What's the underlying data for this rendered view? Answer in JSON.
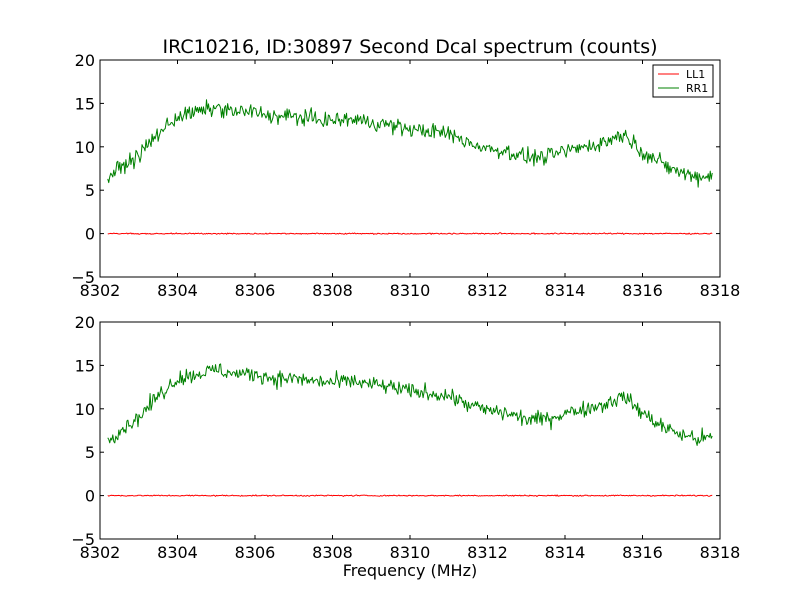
{
  "figure": {
    "title": "IRC10216, ID:30897 Second Dcal spectrum (counts)",
    "xlabel": "Frequency (MHz)",
    "background": "#ffffff"
  },
  "chart_data": [
    {
      "type": "line",
      "title": "IRC10216, ID:30897 Second Dcal spectrum (counts)",
      "xlabel": "",
      "ylabel": "",
      "xlim": [
        8302,
        8318
      ],
      "ylim": [
        -5,
        20
      ],
      "xticks": [
        8302,
        8304,
        8306,
        8308,
        8310,
        8312,
        8314,
        8316,
        8318
      ],
      "yticks": [
        -5,
        0,
        5,
        10,
        15,
        20
      ],
      "grid": false,
      "legend": "top-right",
      "series": [
        {
          "name": "LL1",
          "color": "#ff0000",
          "x": [
            8302.2,
            8317.8
          ],
          "y": [
            0.0,
            0.0
          ]
        },
        {
          "name": "RR1",
          "color": "#008000",
          "x": [
            8302.2,
            8302.5,
            8303.0,
            8303.5,
            8304.0,
            8304.5,
            8305.0,
            8305.5,
            8306.0,
            8306.5,
            8307.0,
            8307.5,
            8308.0,
            8308.5,
            8309.0,
            8309.5,
            8310.0,
            8310.5,
            8311.0,
            8311.5,
            8312.0,
            8312.5,
            8313.0,
            8313.5,
            8314.0,
            8314.5,
            8315.0,
            8315.5,
            8316.0,
            8316.5,
            8317.0,
            8317.5,
            8317.8
          ],
          "y": [
            6.5,
            7.5,
            9.0,
            11.5,
            13.5,
            14.0,
            14.5,
            14.0,
            14.0,
            13.5,
            13.5,
            13.2,
            13.0,
            13.2,
            12.8,
            12.5,
            12.0,
            11.8,
            11.5,
            10.5,
            9.8,
            9.5,
            8.8,
            8.8,
            9.5,
            10.0,
            10.5,
            11.5,
            9.5,
            8.0,
            7.0,
            6.5,
            6.8
          ]
        }
      ]
    },
    {
      "type": "line",
      "title": "",
      "xlabel": "Frequency (MHz)",
      "ylabel": "",
      "xlim": [
        8302,
        8318
      ],
      "ylim": [
        -5,
        20
      ],
      "xticks": [
        8302,
        8304,
        8306,
        8308,
        8310,
        8312,
        8314,
        8316,
        8318
      ],
      "yticks": [
        -5,
        0,
        5,
        10,
        15,
        20
      ],
      "grid": false,
      "series": [
        {
          "name": "",
          "color": "#ff0000",
          "x": [
            8302.2,
            8317.8
          ],
          "y": [
            0.0,
            0.0
          ]
        },
        {
          "name": "",
          "color": "#008000",
          "x": [
            8302.2,
            8302.5,
            8303.0,
            8303.5,
            8304.0,
            8304.5,
            8305.0,
            8305.5,
            8306.0,
            8306.5,
            8307.0,
            8307.5,
            8308.0,
            8308.5,
            8309.0,
            8309.5,
            8310.0,
            8310.5,
            8311.0,
            8311.5,
            8312.0,
            8312.5,
            8313.0,
            8313.5,
            8314.0,
            8314.5,
            8315.0,
            8315.5,
            8316.0,
            8316.5,
            8317.0,
            8317.5,
            8317.8
          ],
          "y": [
            6.5,
            7.5,
            9.0,
            11.5,
            13.5,
            14.0,
            14.5,
            14.0,
            14.0,
            13.5,
            13.5,
            13.2,
            13.0,
            13.2,
            12.8,
            12.5,
            12.0,
            11.8,
            11.5,
            10.5,
            9.8,
            9.5,
            8.8,
            8.8,
            9.5,
            10.0,
            10.5,
            11.5,
            9.5,
            8.0,
            7.0,
            6.5,
            6.8
          ]
        }
      ]
    }
  ]
}
